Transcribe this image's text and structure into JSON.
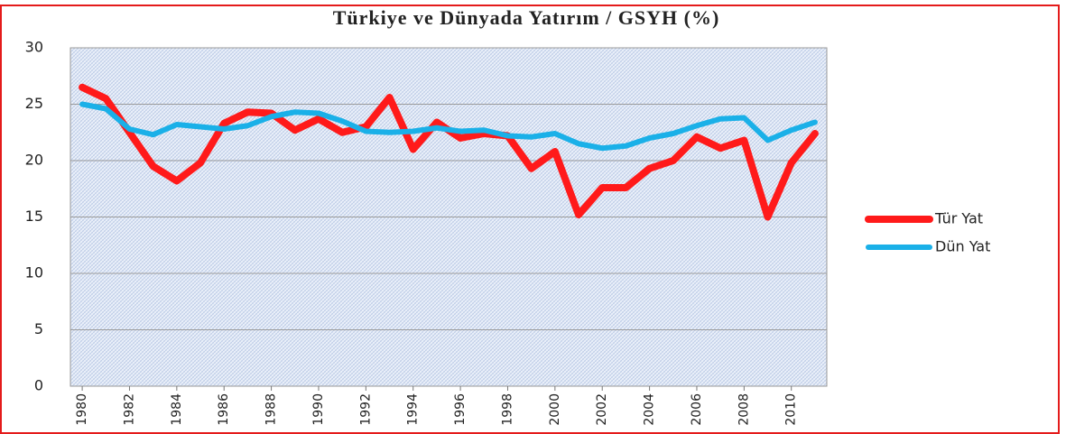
{
  "chart_data": {
    "type": "line",
    "title": "Türkiye ve Dünyada Yatırım / GSYH (%)",
    "x": [
      1980,
      1981,
      1982,
      1983,
      1984,
      1985,
      1986,
      1987,
      1988,
      1989,
      1990,
      1991,
      1992,
      1993,
      1994,
      1995,
      1996,
      1997,
      1998,
      1999,
      2000,
      2001,
      2002,
      2003,
      2004,
      2005,
      2006,
      2007,
      2008,
      2009,
      2010,
      2011
    ],
    "series": [
      {
        "name": "Tür Yat",
        "color": "#ff1a1a",
        "values": [
          26.5,
          25.5,
          22.5,
          19.5,
          18.2,
          19.8,
          23.3,
          24.3,
          24.2,
          22.7,
          23.7,
          22.5,
          23.0,
          25.6,
          21.0,
          23.4,
          22.0,
          22.4,
          22.2,
          19.3,
          20.8,
          15.2,
          17.6,
          17.6,
          19.3,
          20.0,
          22.1,
          21.1,
          21.8,
          15.0,
          19.8,
          22.4
        ]
      },
      {
        "name": "Dün Yat",
        "color": "#1ab0e8",
        "values": [
          25.0,
          24.6,
          22.8,
          22.3,
          23.2,
          23.0,
          22.8,
          23.1,
          23.9,
          24.3,
          24.2,
          23.5,
          22.6,
          22.5,
          22.6,
          22.9,
          22.6,
          22.7,
          22.2,
          22.1,
          22.4,
          21.5,
          21.1,
          21.3,
          22.0,
          22.4,
          23.1,
          23.7,
          23.8,
          21.8,
          22.7,
          23.4
        ]
      }
    ],
    "xlim": [
      1979.5,
      2011.5
    ],
    "xticks": [
      1980,
      1982,
      1984,
      1986,
      1988,
      1990,
      1992,
      1994,
      1996,
      1998,
      2000,
      2002,
      2004,
      2006,
      2008,
      2010
    ],
    "ylim": [
      0,
      30
    ],
    "yticks": [
      0,
      5,
      10,
      15,
      20,
      25,
      30
    ],
    "grid": true,
    "legend": "right"
  }
}
